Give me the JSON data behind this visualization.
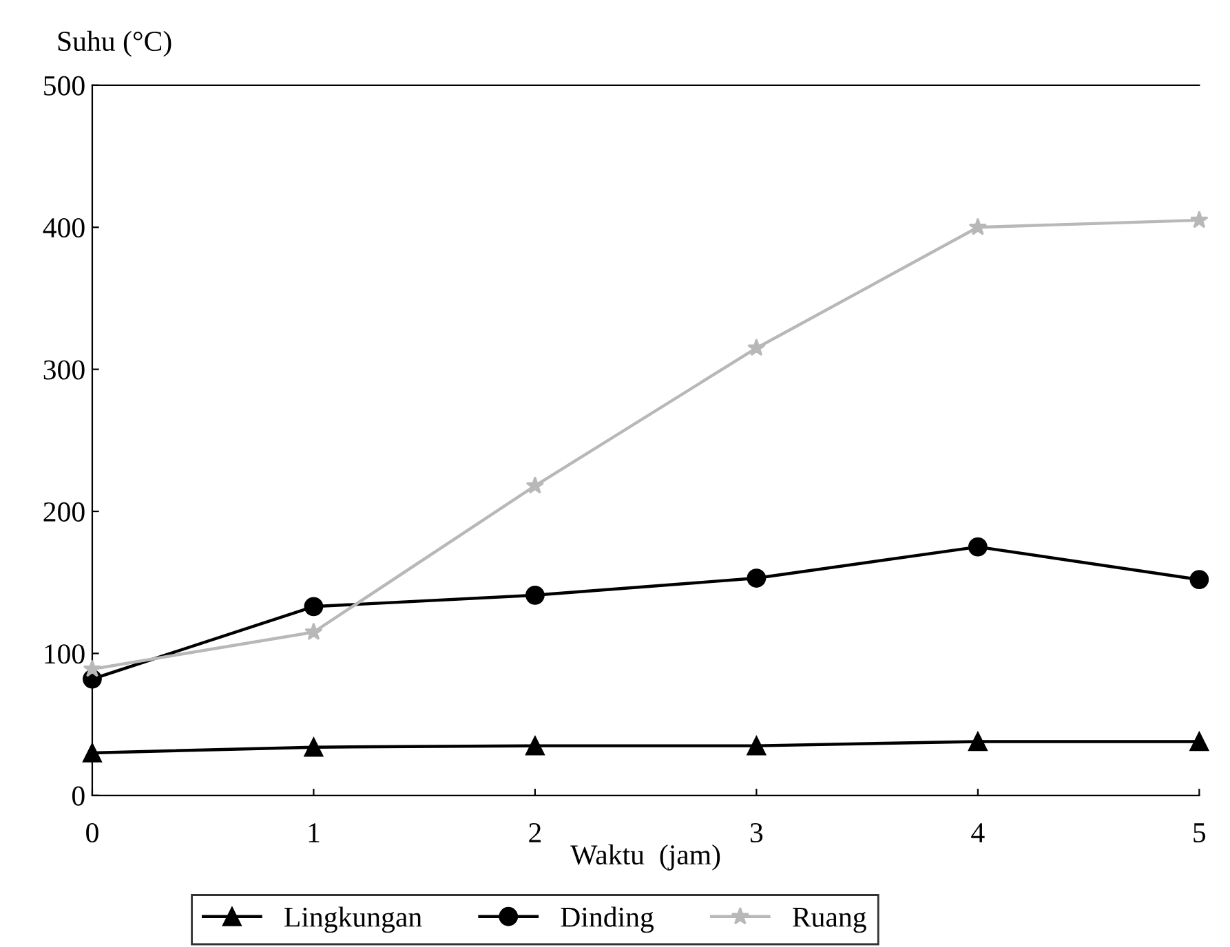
{
  "chart_data": {
    "type": "line",
    "ylabel": "Suhu (°C)",
    "xlabel": "Waktu  (jam)",
    "x": [
      0,
      1,
      2,
      3,
      4,
      5
    ],
    "xlim": [
      0,
      5
    ],
    "xticks": [
      0,
      1,
      2,
      3,
      4,
      5
    ],
    "ylim": [
      0,
      500
    ],
    "yticks": [
      0,
      100,
      200,
      300,
      400,
      500
    ],
    "grid": false,
    "legend": "bottom",
    "series": [
      {
        "name": "Lingkungan",
        "color": "#000000",
        "marker": "triangle",
        "values": [
          30,
          34,
          35,
          35,
          38,
          38
        ]
      },
      {
        "name": "Dinding",
        "color": "#000000",
        "marker": "circle",
        "values": [
          82,
          133,
          141,
          153,
          175,
          152
        ]
      },
      {
        "name": "Ruang",
        "color": "#b8b8b8",
        "marker": "star",
        "values": [
          89,
          115,
          218,
          315,
          400,
          405
        ]
      }
    ]
  }
}
